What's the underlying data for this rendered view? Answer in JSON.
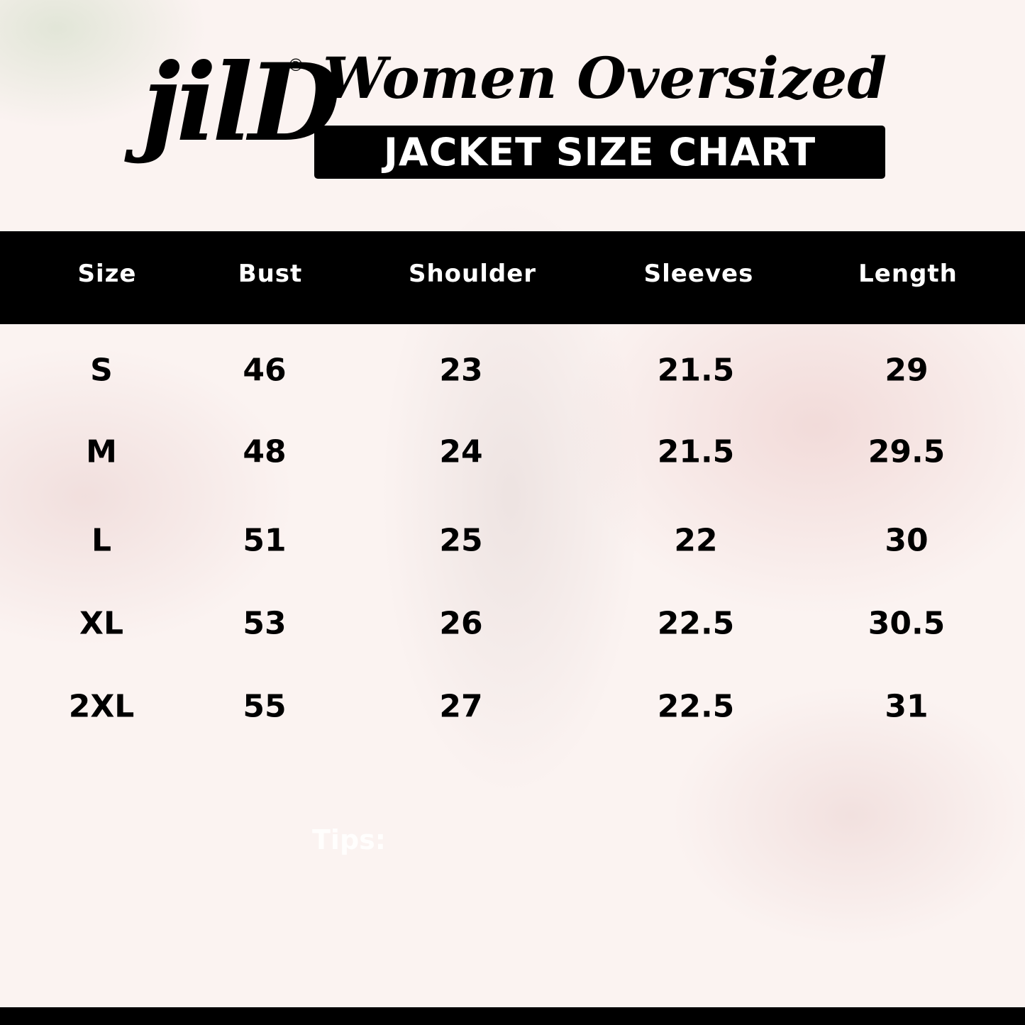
{
  "header": {
    "logo": "jilD",
    "registered": "®",
    "title": "Women Oversized",
    "subtitle": "JACKET SIZE CHART"
  },
  "table": {
    "columns": [
      "Size",
      "Bust",
      "Shoulder",
      "Sleeves",
      "Length"
    ],
    "rows": [
      [
        "S",
        46,
        23,
        21.5,
        29
      ],
      [
        "M",
        48,
        24,
        21.5,
        29.5
      ],
      [
        "L",
        51,
        25,
        22,
        30
      ],
      [
        "XL",
        53,
        26,
        22.5,
        30.5
      ],
      [
        "2XL",
        55,
        27,
        22.5,
        31
      ]
    ]
  },
  "tips": "Tips:"
}
